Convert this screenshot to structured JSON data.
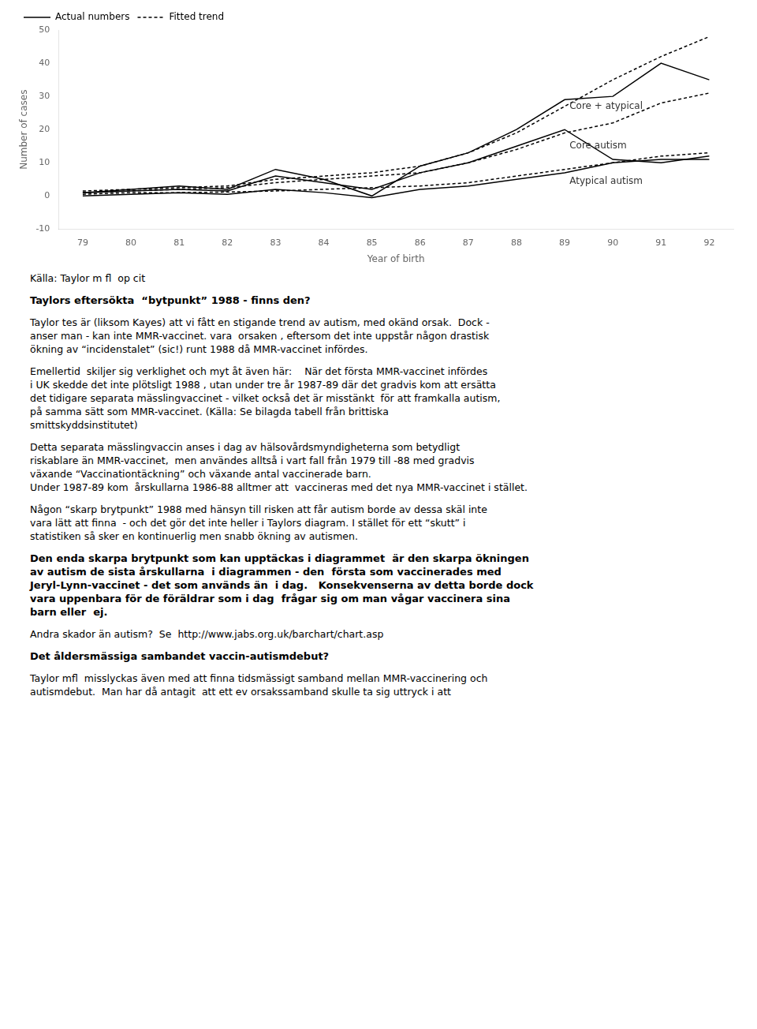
{
  "chart_data": {
    "type": "line",
    "categories": [
      "79",
      "80",
      "81",
      "82",
      "83",
      "84",
      "85",
      "86",
      "87",
      "88",
      "89",
      "90",
      "91",
      "92"
    ],
    "series": [
      {
        "name": "Actual numbers",
        "color": "#000000",
        "line_style": "solid",
        "values": [
          1,
          2,
          3,
          2,
          8,
          5,
          0,
          9,
          13,
          20,
          29,
          30,
          40,
          35
        ]
      },
      {
        "name": "Fitted trend",
        "color": "#000000",
        "line_style": "dashed",
        "values": [
          1.5,
          2,
          2.5,
          3,
          5,
          6,
          7,
          9,
          13,
          19,
          27,
          35,
          42,
          48
        ]
      },
      {
        "name": "Actual numbers",
        "color": "#000000",
        "line_style": "solid",
        "values": [
          1,
          1.5,
          2,
          1.5,
          6,
          4,
          2,
          7,
          10,
          15,
          20,
          11,
          10,
          12
        ]
      },
      {
        "name": "Fitted trend",
        "color": "#000000",
        "line_style": "dashed",
        "values": [
          1,
          1.5,
          2,
          2.5,
          4,
          5,
          6,
          7,
          10,
          14,
          19,
          22,
          28,
          31
        ]
      },
      {
        "name": "Actual numbers",
        "color": "#000000",
        "line_style": "solid",
        "values": [
          0,
          0.5,
          1,
          0.5,
          2,
          1,
          -0.5,
          2,
          3,
          5,
          7,
          10,
          11,
          11
        ]
      },
      {
        "name": "Fitted trend",
        "color": "#000000",
        "line_style": "dashed",
        "values": [
          0.5,
          1,
          1,
          1.2,
          1.5,
          2,
          2.5,
          3,
          4,
          6,
          8,
          10,
          12,
          13
        ]
      }
    ],
    "xlabel": "Year of birth",
    "ylabel": "Number of cases",
    "ylim": [
      -10,
      50
    ],
    "yticks": [
      -10,
      0,
      10,
      20,
      30,
      40,
      50
    ],
    "grid": false,
    "legend": "upper left",
    "marker": "none",
    "annotations": [
      {
        "text": "Core + atypical",
        "x": 10.1,
        "y": 27
      },
      {
        "text": "Core autism",
        "x": 10.1,
        "y": 15
      },
      {
        "text": "Atypical autism",
        "x": 10.1,
        "y": 4.5
      }
    ]
  },
  "text_blocks": [
    {
      "text": "Källa: Taylor m fl  op cit"
    },
    {
      "text": "Taylors eftersökta  “bytpunkt” 1988 - finns den?",
      "bold": true
    },
    {
      "text": "Taylor tes är (liksom Kayes) att vi fått en stigande trend av autism, med okänd orsak.  Dock -\nanser man - kan inte MMR-vaccinet. vara  orsaken , eftersom det inte uppstår någon drastisk\nökning av “incidenstalet” (sic!) runt 1988 då MMR-vaccinet infördes."
    },
    {
      "text": "Emellertid  skiljer sig verklighet och myt åt även här:    När det första MMR-vaccinet infördes\ni UK skedde det inte plötsligt 1988 , utan under tre år 1987-89 där det gradvis kom att ersätta\ndet tidigare separata mässlingvaccinet - vilket också det är misstänkt  för att framkalla autism,\npå samma sätt som MMR-vaccinet. (Källa: Se bilagda tabell från brittiska\nsmittskyddsinstitutet)"
    },
    {
      "text": "Detta separata mässlingvaccin anses i dag av hälsovårdsmyndigheterna som betydligt\nriskablare än MMR-vaccinet,  men användes alltså i vart fall från 1979 till -88 med gradvis\nväxande “Vaccinationtäckning” och växande antal vaccinerade barn.\nUnder 1987-89 kom  årskullarna 1986-88 alltmer att  vaccineras med det nya MMR-vaccinet i stället."
    },
    {
      "text": "Någon “skarp brytpunkt” 1988 med hänsyn till risken att får autism borde av dessa skäl inte\nvara lätt att finna  - och det gör det inte heller i Taylors diagram. I stället för ett “skutt” i\nstatistiken så sker en kontinuerlig men snabb ökning av autismen."
    },
    {
      "text": "Den enda skarpa brytpunkt som kan upptäckas i diagrammet  är den skarpa ökningen\nav autism de sista årskullarna  i diagrammen - den  första som vaccinerades med\nJeryl-Lynn-vaccinet - det som används än  i dag.   Konsekvenserna av detta borde dock\nvara uppenbara för de föräldrar som i dag  frågar sig om man vågar vaccinera sina\nbarn eller  ej.",
      "bold": true
    },
    {
      "text": "Andra skador än autism?  Se  http://www.jabs.org.uk/barchart/chart.asp"
    },
    {
      "text": "Det åldersmässiga sambandet vaccin-autismdebut?",
      "bold": true
    },
    {
      "text": "Taylor mfl  misslyckas även med att finna tidsmässigt samband mellan MMR-vaccinering och\nautismdebut.  Man har då antagit  att ett ev orsakssamband skulle ta sig uttryck i att"
    }
  ]
}
